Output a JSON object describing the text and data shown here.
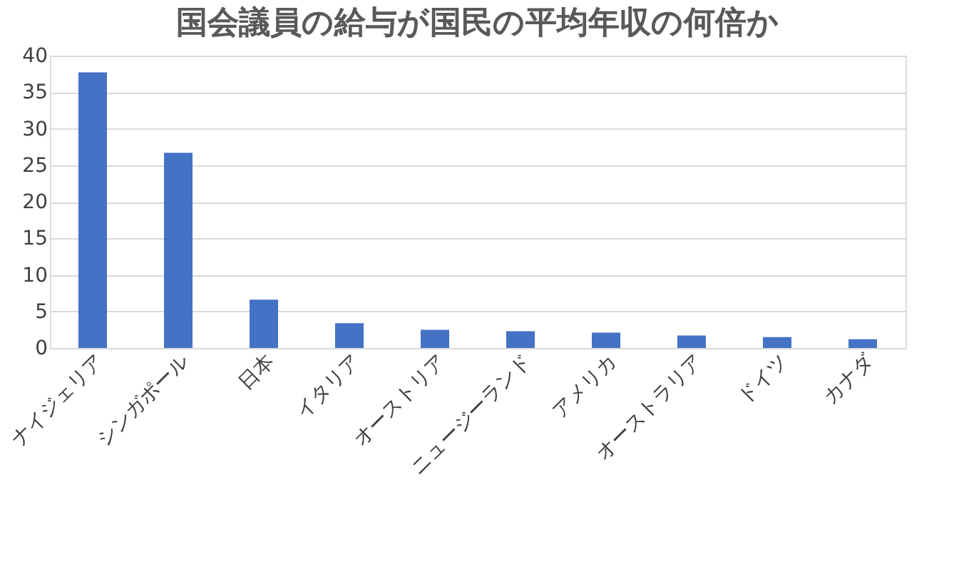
{
  "chart_data": {
    "type": "bar",
    "title": "国会議員の給与が国民の平均年収の何倍か",
    "categories": [
      "ナイジェリア",
      "シンガポール",
      "日本",
      "イタリア",
      "オーストリア",
      "ニュージーランド",
      "アメリカ",
      "オーストラリア",
      "ドイツ",
      "カナダ"
    ],
    "values": [
      37.7,
      26.7,
      6.6,
      3.4,
      2.5,
      2.3,
      2.1,
      1.7,
      1.5,
      1.2
    ],
    "color": "#4472c4",
    "ylim": [
      0,
      40
    ],
    "yticks": [
      0,
      5,
      10,
      15,
      20,
      25,
      30,
      35,
      40
    ],
    "grid": "y"
  }
}
